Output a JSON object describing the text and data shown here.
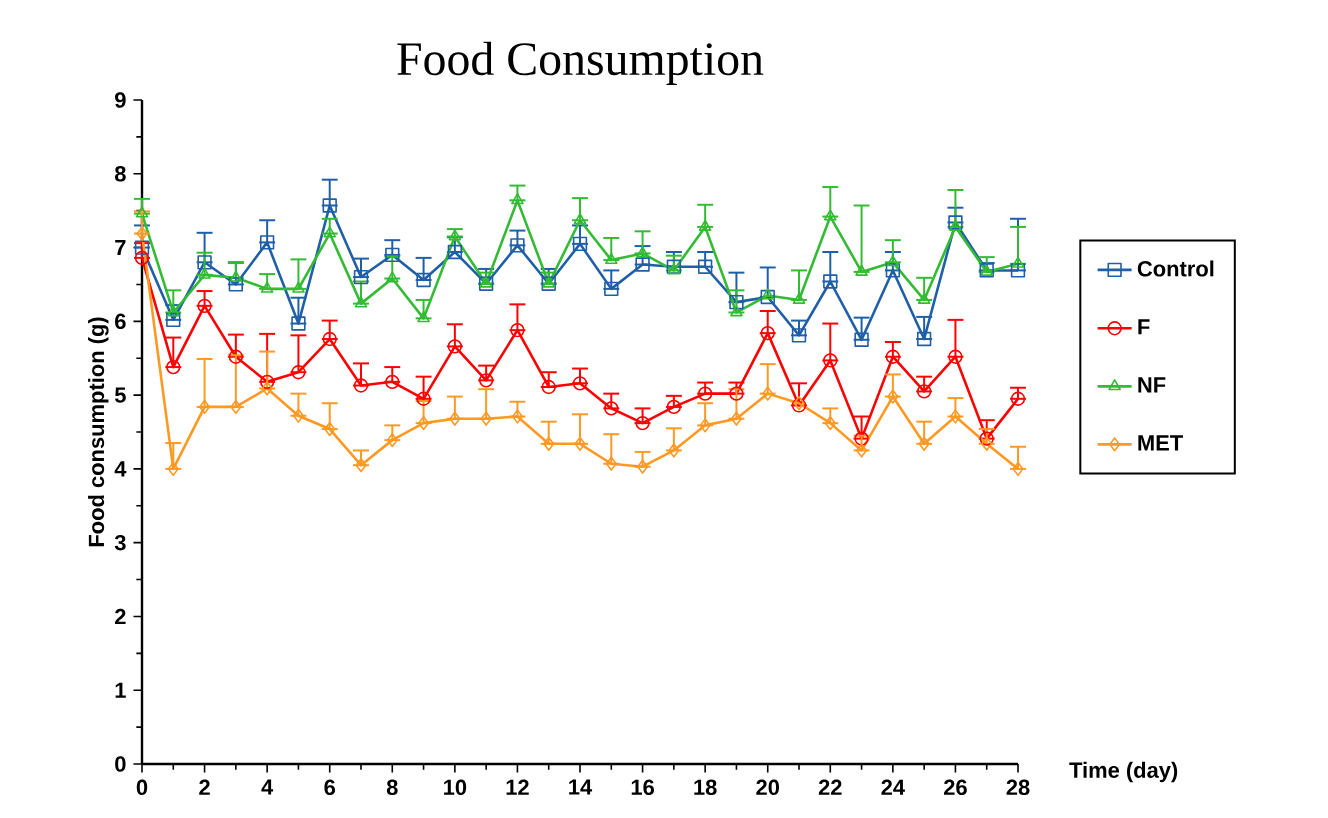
{
  "chart_data": {
    "type": "line",
    "title": "Food Consumption",
    "xlabel": "Time (day)",
    "ylabel": "Food consumption (g)",
    "x": [
      0,
      1,
      2,
      3,
      4,
      5,
      6,
      7,
      8,
      9,
      10,
      11,
      12,
      13,
      14,
      15,
      16,
      17,
      18,
      19,
      20,
      21,
      22,
      23,
      24,
      25,
      26,
      27,
      28
    ],
    "xlim": [
      0,
      28
    ],
    "xticks": [
      0,
      2,
      4,
      6,
      8,
      10,
      12,
      14,
      16,
      18,
      20,
      22,
      24,
      26,
      28
    ],
    "ylim": [
      0,
      9
    ],
    "yticks": [
      0,
      1,
      2,
      3,
      4,
      5,
      6,
      7,
      8,
      9
    ],
    "legend": "right",
    "line_style": "solid",
    "series": [
      {
        "name": "Control",
        "color": "#1f5fa8",
        "marker": "square",
        "values": [
          7.0,
          6.02,
          6.8,
          6.5,
          7.07,
          5.97,
          7.57,
          6.6,
          6.9,
          6.56,
          6.94,
          6.51,
          7.03,
          6.51,
          7.05,
          6.44,
          6.77,
          6.74,
          6.74,
          6.26,
          6.33,
          5.81,
          6.54,
          5.75,
          6.69,
          5.76,
          7.34,
          6.69,
          6.69
        ],
        "errors": [
          [
            7.0,
            7.3
          ],
          [
            6.02,
            6.22
          ],
          [
            6.8,
            7.2
          ],
          [
            6.5,
            6.8
          ],
          [
            7.07,
            7.37
          ],
          [
            5.97,
            6.32
          ],
          [
            7.57,
            7.92
          ],
          [
            6.6,
            6.85
          ],
          [
            6.9,
            7.1
          ],
          [
            6.56,
            6.86
          ],
          [
            6.94,
            7.14
          ],
          [
            6.51,
            6.71
          ],
          [
            7.03,
            7.23
          ],
          [
            6.51,
            6.71
          ],
          [
            7.05,
            7.3
          ],
          [
            6.44,
            6.69
          ],
          [
            6.77,
            7.02
          ],
          [
            6.74,
            6.94
          ],
          [
            6.74,
            6.94
          ],
          [
            6.26,
            6.66
          ],
          [
            6.33,
            6.73
          ],
          [
            5.81,
            6.01
          ],
          [
            6.54,
            6.94
          ],
          [
            5.75,
            6.05
          ],
          [
            6.69,
            6.94
          ],
          [
            5.76,
            6.06
          ],
          [
            7.34,
            7.54
          ],
          [
            6.69,
            6.79
          ],
          [
            6.69,
            7.39
          ]
        ]
      },
      {
        "name": "F",
        "color": "#ff0000",
        "marker": "circle",
        "values": [
          6.86,
          5.38,
          6.21,
          5.52,
          5.18,
          5.31,
          5.76,
          5.13,
          5.18,
          4.95,
          5.66,
          5.2,
          5.88,
          5.11,
          5.16,
          4.82,
          4.62,
          4.84,
          5.02,
          5.02,
          5.84,
          4.86,
          5.47,
          4.41,
          5.52,
          5.05,
          5.52,
          4.41,
          4.95
        ],
        "errors": [
          [
            6.86,
            7.06
          ],
          [
            5.38,
            5.78
          ],
          [
            6.21,
            6.41
          ],
          [
            5.52,
            5.82
          ],
          [
            5.18,
            5.83
          ],
          [
            5.31,
            5.81
          ],
          [
            5.76,
            6.01
          ],
          [
            5.13,
            5.43
          ],
          [
            5.18,
            5.38
          ],
          [
            4.95,
            5.25
          ],
          [
            5.66,
            5.96
          ],
          [
            5.2,
            5.4
          ],
          [
            5.88,
            6.23
          ],
          [
            5.11,
            5.31
          ],
          [
            5.16,
            5.36
          ],
          [
            4.82,
            5.02
          ],
          [
            4.62,
            4.82
          ],
          [
            4.84,
            4.99
          ],
          [
            5.02,
            5.17
          ],
          [
            5.02,
            5.17
          ],
          [
            5.84,
            6.14
          ],
          [
            4.86,
            5.16
          ],
          [
            5.47,
            5.97
          ],
          [
            4.41,
            4.71
          ],
          [
            5.52,
            5.72
          ],
          [
            5.05,
            5.25
          ],
          [
            5.52,
            6.02
          ],
          [
            4.41,
            4.66
          ],
          [
            4.95,
            5.1
          ]
        ]
      },
      {
        "name": "NF",
        "color": "#33bb33",
        "marker": "triangle",
        "values": [
          7.46,
          6.12,
          6.63,
          6.59,
          6.44,
          6.44,
          7.19,
          6.24,
          6.58,
          6.04,
          7.15,
          6.51,
          7.64,
          6.51,
          7.37,
          6.83,
          6.92,
          6.69,
          7.28,
          6.12,
          6.35,
          6.29,
          7.42,
          6.67,
          6.8,
          6.29,
          7.28,
          6.67,
          6.78
        ],
        "errors": [
          [
            7.46,
            7.66
          ],
          [
            6.12,
            6.42
          ],
          [
            6.63,
            6.93
          ],
          [
            6.59,
            6.79
          ],
          [
            6.44,
            6.64
          ],
          [
            6.44,
            6.84
          ],
          [
            7.19,
            7.39
          ],
          [
            6.24,
            6.54
          ],
          [
            6.58,
            6.88
          ],
          [
            6.04,
            6.29
          ],
          [
            7.15,
            7.25
          ],
          [
            6.51,
            6.66
          ],
          [
            7.64,
            7.84
          ],
          [
            6.51,
            6.66
          ],
          [
            7.37,
            7.67
          ],
          [
            6.83,
            7.13
          ],
          [
            6.92,
            7.22
          ],
          [
            6.69,
            6.89
          ],
          [
            7.28,
            7.58
          ],
          [
            6.12,
            6.42
          ],
          null,
          [
            6.29,
            6.69
          ],
          [
            7.42,
            7.82
          ],
          [
            6.67,
            7.57
          ],
          [
            6.8,
            7.1
          ],
          [
            6.29,
            6.59
          ],
          [
            7.28,
            7.78
          ],
          [
            6.67,
            6.87
          ],
          [
            6.78,
            7.28
          ]
        ]
      },
      {
        "name": "MET",
        "color": "#ff9922",
        "marker": "diamond",
        "values": [
          7.19,
          4.0,
          4.84,
          4.84,
          5.09,
          4.72,
          4.54,
          4.05,
          4.39,
          4.62,
          4.68,
          4.68,
          4.71,
          4.34,
          4.34,
          4.07,
          4.03,
          4.25,
          4.59,
          4.68,
          5.02,
          4.89,
          4.62,
          4.25,
          4.98,
          4.34,
          4.71,
          4.34,
          4.0
        ],
        "errors": [
          [
            7.19,
            7.49
          ],
          [
            4.0,
            4.35
          ],
          [
            4.84,
            5.49
          ],
          [
            4.84,
            5.54
          ],
          [
            5.09,
            5.59
          ],
          [
            4.72,
            5.02
          ],
          [
            4.54,
            4.89
          ],
          [
            4.05,
            4.25
          ],
          [
            4.39,
            4.59
          ],
          [
            4.62,
            4.92
          ],
          [
            4.68,
            4.98
          ],
          [
            4.68,
            5.08
          ],
          [
            4.71,
            4.91
          ],
          [
            4.34,
            4.64
          ],
          [
            4.34,
            4.74
          ],
          [
            4.07,
            4.47
          ],
          [
            4.03,
            4.23
          ],
          [
            4.25,
            4.55
          ],
          [
            4.59,
            4.89
          ],
          [
            4.68,
            5.08
          ],
          [
            5.02,
            5.42
          ],
          null,
          [
            4.62,
            4.82
          ],
          [
            4.25,
            4.45
          ],
          [
            4.98,
            5.28
          ],
          [
            4.34,
            4.64
          ],
          [
            4.71,
            4.96
          ],
          [
            4.34,
            4.54
          ],
          [
            4.0,
            4.3
          ]
        ]
      }
    ]
  }
}
